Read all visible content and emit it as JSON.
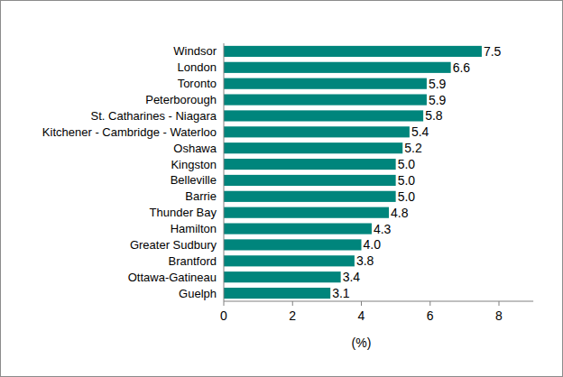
{
  "chart_data": {
    "type": "bar",
    "orientation": "horizontal",
    "categories": [
      "Windsor",
      "London",
      "Toronto",
      "Peterborough",
      "St. Catharines - Niagara",
      "Kitchener - Cambridge - Waterloo",
      "Oshawa",
      "Kingston",
      "Belleville",
      "Barrie",
      "Thunder Bay",
      "Hamilton",
      "Greater Sudbury",
      "Brantford",
      "Ottawa-Gatineau",
      "Guelph"
    ],
    "values": [
      7.5,
      6.6,
      5.9,
      5.9,
      5.8,
      5.4,
      5.2,
      5.0,
      5.0,
      5.0,
      4.8,
      4.3,
      4.0,
      3.8,
      3.4,
      3.1
    ],
    "value_labels": [
      "7.5",
      "6.6",
      "5.9",
      "5.9",
      "5.8",
      "5.4",
      "5.2",
      "5.0",
      "5.0",
      "5.0",
      "4.8",
      "4.3",
      "4.0",
      "3.8",
      "3.4",
      "3.1"
    ],
    "color": "#00857c",
    "xlim": [
      0,
      9
    ],
    "xticks": [
      0,
      2,
      4,
      6,
      8
    ],
    "x_label": "(%)",
    "data_labels": true,
    "grid": false
  }
}
